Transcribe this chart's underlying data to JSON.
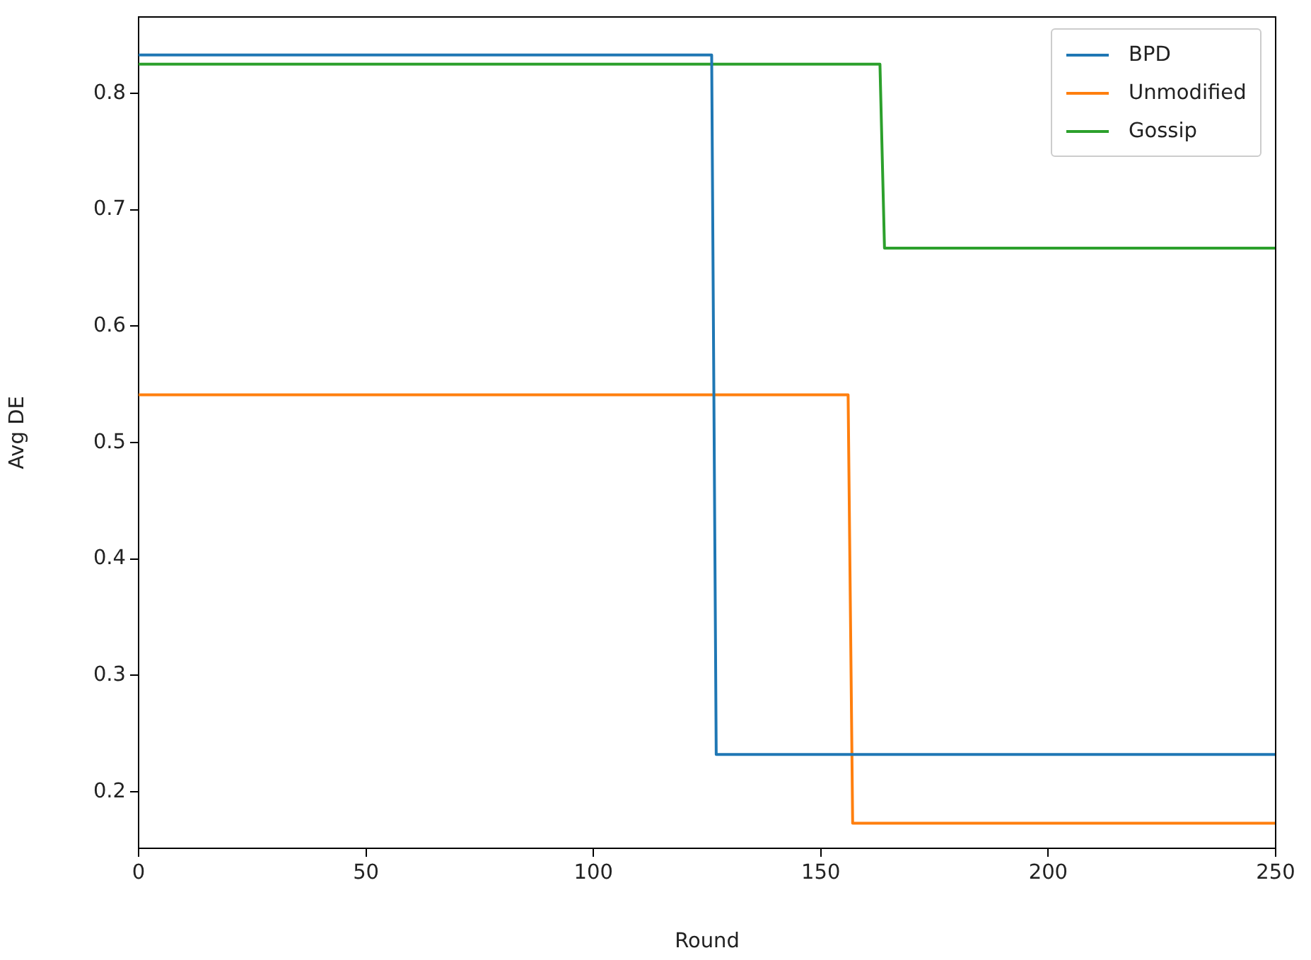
{
  "chart_data": {
    "type": "line",
    "xlabel": "Round",
    "ylabel": "Avg DE",
    "xlim": [
      0,
      250
    ],
    "ylim": [
      0.1514,
      0.8656
    ],
    "xticks": [
      0,
      50,
      100,
      150,
      200,
      250
    ],
    "yticks": [
      0.2,
      0.3,
      0.4,
      0.5,
      0.6,
      0.7,
      0.8
    ],
    "grid": false,
    "legend": "top right",
    "marker": "none",
    "line_style": "solid",
    "series": [
      {
        "name": "BPD",
        "color": "#1f77b4",
        "x": [
          0,
          126,
          127,
          250
        ],
        "values": [
          0.833,
          0.833,
          0.232,
          0.232
        ]
      },
      {
        "name": "Unmodified",
        "color": "#ff7f0e",
        "x": [
          0,
          156,
          157,
          250
        ],
        "values": [
          0.541,
          0.541,
          0.173,
          0.173
        ]
      },
      {
        "name": "Gossip",
        "color": "#2ca02c",
        "x": [
          0,
          163,
          164,
          250
        ],
        "values": [
          0.825,
          0.825,
          0.667,
          0.667
        ]
      }
    ]
  }
}
